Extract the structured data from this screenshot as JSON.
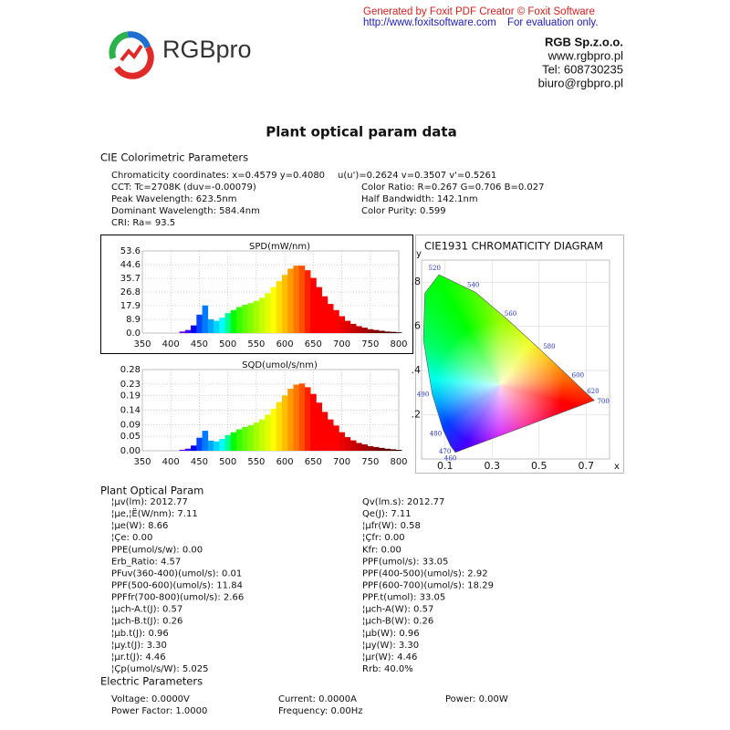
{
  "watermark": {
    "line1": "Generated by Foxit PDF Creator © Foxit Software",
    "url": "http://www.foxitsoftware.com",
    "note": "For evaluation only."
  },
  "logo": {
    "text": "RGBpro"
  },
  "company": [
    "RGB Sp.z.o.o.",
    "www.rgbpro.pl",
    "Tel: 608730235",
    "biuro@rgbpro.pl"
  ],
  "title": "Plant optical param data",
  "colorimetric": {
    "heading": "CIE Colorimetric Parameters",
    "rows": [
      [
        "Chromaticity coordinates: x=0.4579 y=0.4080",
        "u(u')=0.2624 v=0.3507 v'=0.5261"
      ],
      [
        "CCT: Tc=2708K (duv=-0.00079)",
        "Color Ratio: R=0.267  G=0.706  B=0.027"
      ],
      [
        "Peak Wavelength: 623.5nm",
        "Half Bandwidth: 142.1nm"
      ],
      [
        "Dominant Wavelength: 584.4nm",
        "Color Purity: 0.599"
      ],
      [
        "CRI: Ra= 93.5"
      ]
    ]
  },
  "chart_data": [
    {
      "type": "spectrum",
      "title": "SPD(mW/nm)",
      "x": [
        400,
        410,
        420,
        430,
        440,
        450,
        460,
        470,
        480,
        490,
        500,
        510,
        520,
        530,
        540,
        550,
        560,
        570,
        580,
        590,
        600,
        610,
        620,
        630,
        640,
        650,
        660,
        670,
        680,
        690,
        700,
        710,
        720,
        730,
        740,
        750,
        760,
        770,
        780,
        790,
        800
      ],
      "values": [
        0,
        0,
        1,
        2,
        5,
        12,
        18,
        9,
        8,
        10,
        13,
        15,
        17,
        18.5,
        19.5,
        21,
        23,
        26,
        30,
        34,
        38,
        42,
        44,
        44,
        41,
        36,
        30,
        24,
        19,
        15,
        11,
        8,
        6,
        4.5,
        3.5,
        2.5,
        2,
        1.5,
        1,
        0.8,
        0.5
      ],
      "xlim": [
        350,
        800
      ],
      "ylim": [
        0,
        53.6
      ],
      "xticks": [
        350,
        400,
        450,
        500,
        550,
        600,
        650,
        700,
        750,
        800
      ],
      "yticks": [
        {
          "value": 0,
          "label": "0.0"
        },
        8.9,
        17.9,
        26.8,
        35.7,
        44.6,
        53.6
      ],
      "grid": true
    },
    {
      "type": "spectrum",
      "title": "SQD(umol/s/nm)",
      "x": [
        400,
        410,
        420,
        430,
        440,
        450,
        460,
        470,
        480,
        490,
        500,
        510,
        520,
        530,
        540,
        550,
        560,
        570,
        580,
        590,
        600,
        610,
        620,
        630,
        640,
        650,
        660,
        670,
        680,
        690,
        700,
        710,
        720,
        730,
        740,
        750,
        760,
        770,
        780,
        790,
        800
      ],
      "values": [
        0,
        0,
        0.0035,
        0.0072,
        0.018,
        0.045,
        0.069,
        0.035,
        0.032,
        0.041,
        0.054,
        0.064,
        0.074,
        0.082,
        0.088,
        0.097,
        0.108,
        0.124,
        0.145,
        0.168,
        0.191,
        0.214,
        0.228,
        0.232,
        0.219,
        0.196,
        0.166,
        0.134,
        0.108,
        0.087,
        0.064,
        0.047,
        0.036,
        0.027,
        0.022,
        0.016,
        0.013,
        0.01,
        0.007,
        0.005,
        0.003
      ],
      "xlim": [
        350,
        800
      ],
      "ylim": [
        0,
        0.28
      ],
      "xticks": [
        350,
        400,
        450,
        500,
        550,
        600,
        650,
        700,
        750,
        800
      ],
      "yticks": [
        {
          "value": 0,
          "label": "0.00"
        },
        0.05,
        0.09,
        0.14,
        0.19,
        0.23,
        0.28
      ],
      "grid": true
    },
    {
      "type": "cie",
      "title": "CIE1931 CHROMATICITY DIAGRAM",
      "xlabel": "x",
      "ylabel": "y",
      "xlim": [
        0,
        0.8
      ],
      "ylim": [
        0,
        0.9
      ],
      "xticks": [
        0.1,
        0.3,
        0.5,
        0.7
      ],
      "yticks": [
        {
          "value": 0.2,
          "label": ".2"
        },
        {
          "value": 0.4,
          "label": ".4"
        },
        {
          "value": 0.6,
          "label": ".6"
        },
        {
          "value": 0.8,
          "label": ".8"
        }
      ],
      "grid": true,
      "locus": {
        "labels": [
          "460",
          "470",
          "480",
          "490",
          null,
          null,
          "520",
          "540",
          "560",
          "580",
          "600",
          "620",
          "700"
        ],
        "x": [
          0.144,
          0.124,
          0.091,
          0.045,
          0.008,
          0.014,
          0.074,
          0.23,
          0.373,
          0.513,
          0.627,
          0.691,
          0.735
        ],
        "y": [
          0.03,
          0.058,
          0.133,
          0.295,
          0.538,
          0.75,
          0.834,
          0.754,
          0.624,
          0.487,
          0.373,
          0.308,
          0.265
        ]
      }
    }
  ],
  "plant": {
    "heading": "Plant Optical Param",
    "rows": [
      [
        "¦µv(lm): 2012.77",
        "Qv(lm.s): 2012.77"
      ],
      [
        "¦µe,¦Ë(W/nm): 7.11",
        "Qe(J): 7.11"
      ],
      [
        "¦µe(W): 8.66",
        "¦µfr(W): 0.58"
      ],
      [
        "¦Çe: 0.00",
        "¦Çfr: 0.00"
      ],
      [
        "PPE(umol/s/w): 0.00",
        "Kfr: 0.00"
      ],
      [
        "Erb_Ratio: 4.57",
        "PPF(umol/s): 33.05"
      ],
      [
        "PFuv(360-400)(umol/s): 0.01",
        "PPF(400-500)(umol/s): 2.92"
      ],
      [
        "PPF(500-600)(umol/s): 11.84",
        "PPF(600-700)(umol/s): 18.29"
      ],
      [
        "PPFfr(700-800)(umol/s): 2.66",
        "PPF.t(umol): 33.05"
      ],
      [
        "¦µch-A.t(J): 0.57",
        "¦µch-A(W): 0.57"
      ],
      [
        "¦µch-B.t(J): 0.26",
        "¦µch-B(W): 0.26"
      ],
      [
        "¦µb.t(J): 0.96",
        "¦µb(W): 0.96"
      ],
      [
        "¦µy.t(J): 3.30",
        "¦µy(W): 3.30"
      ],
      [
        "¦µr.t(J): 4.46",
        "¦µr(W): 4.46"
      ],
      [
        "¦Çp(umol/s/W): 5.025",
        "Rrb: 40.0%"
      ]
    ]
  },
  "electric": {
    "heading": "Electric Parameters",
    "rows": [
      [
        "Voltage: 0.0000V",
        "Current: 0.0000A",
        "Power: 0.00W"
      ],
      [
        "Power Factor: 1.0000",
        "Frequency: 0.00Hz"
      ]
    ]
  }
}
